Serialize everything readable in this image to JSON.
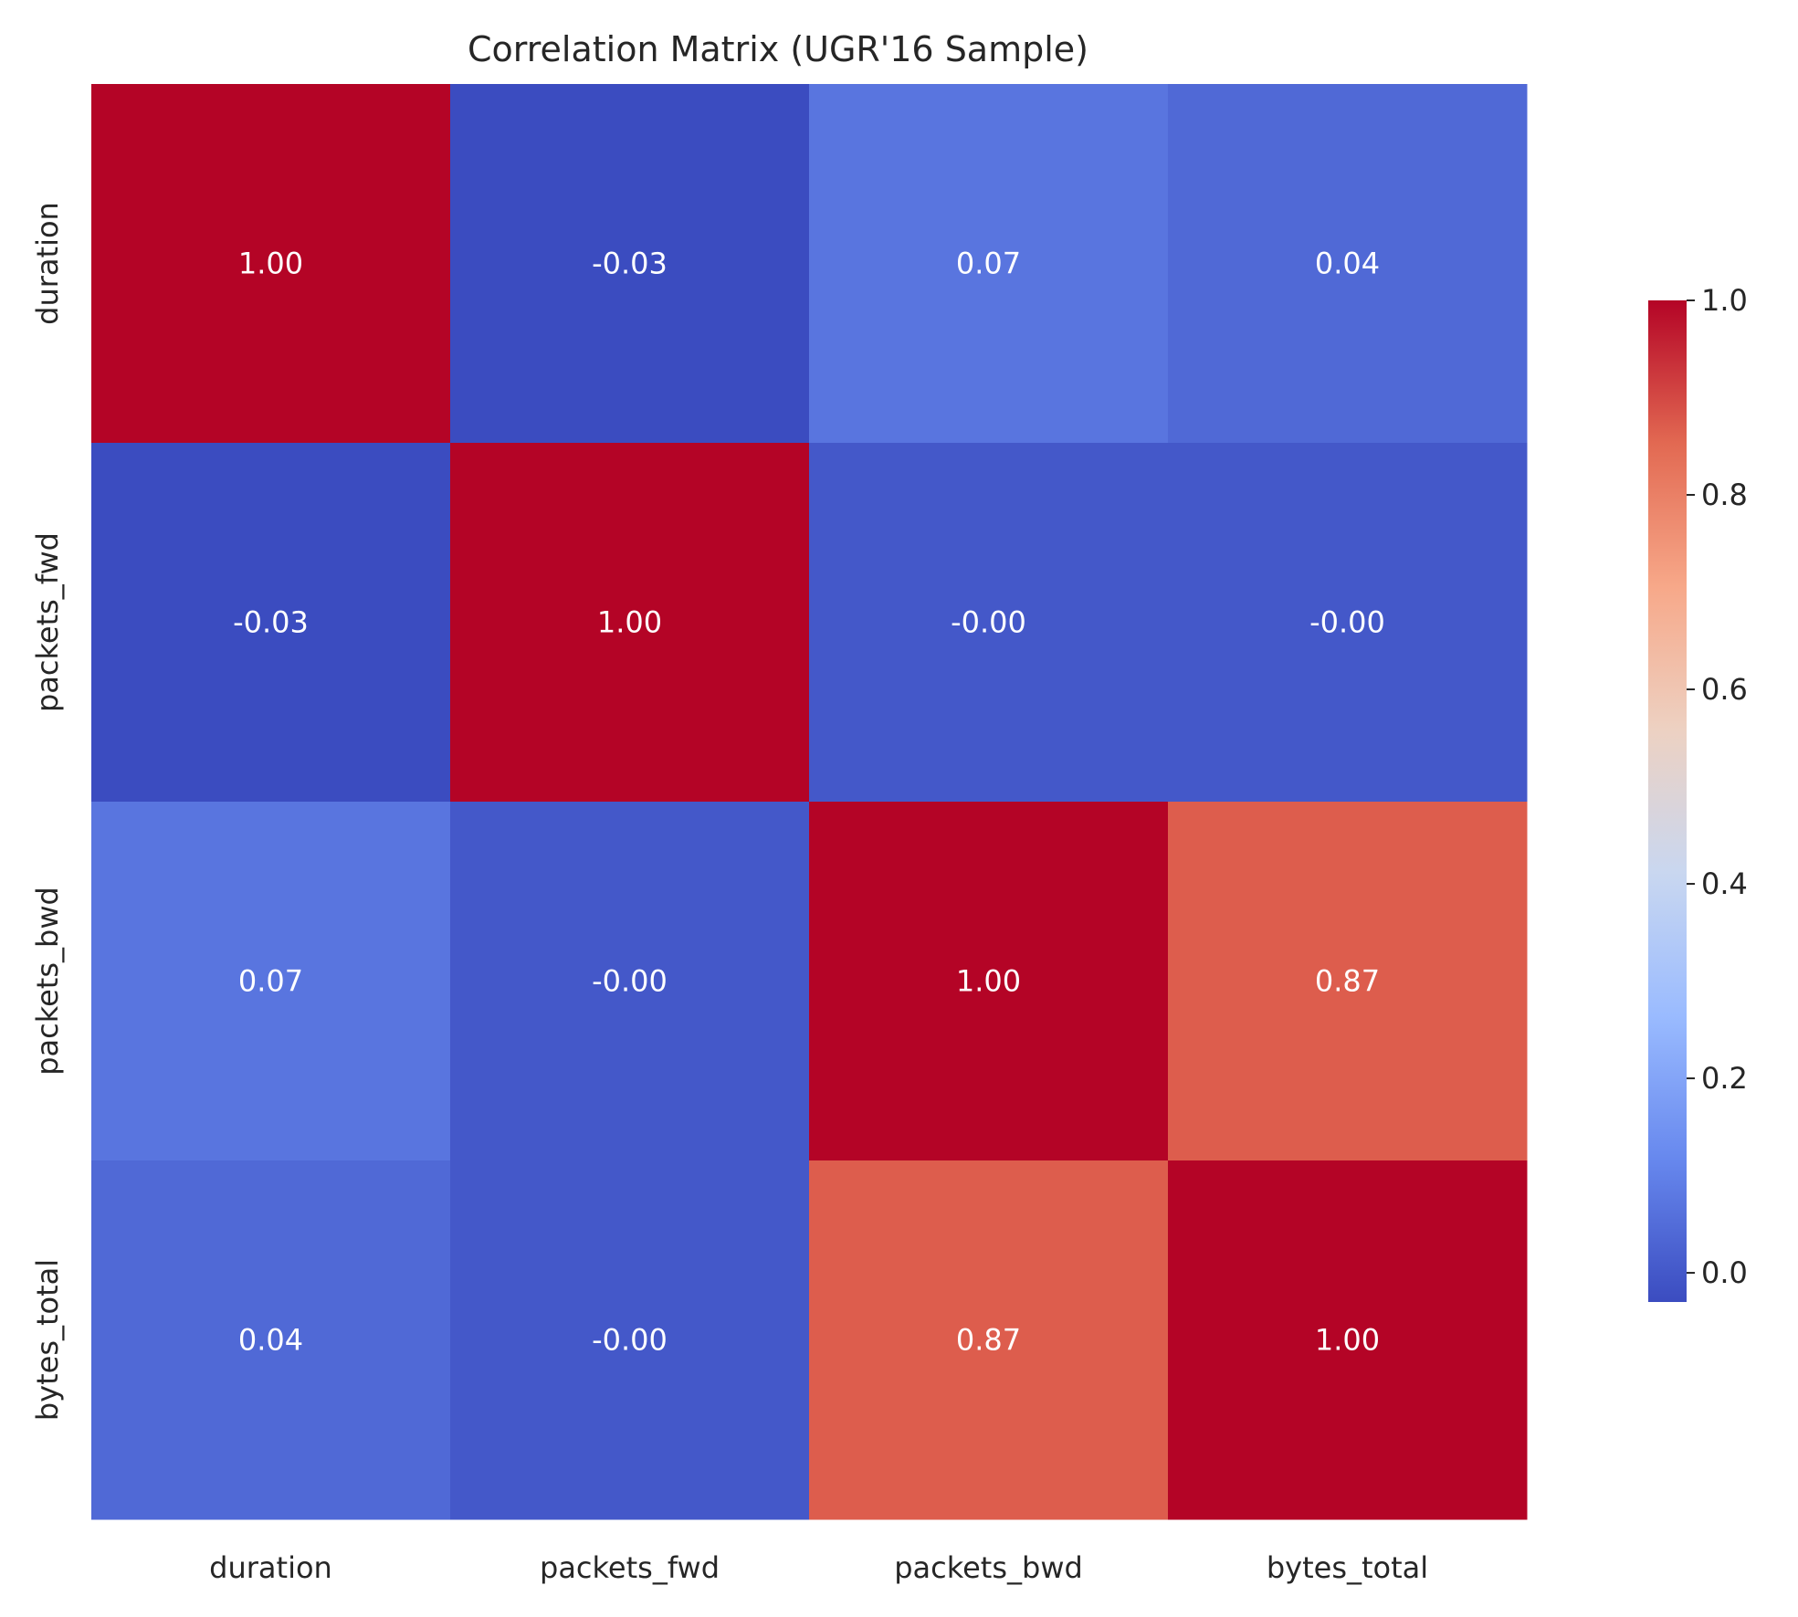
{
  "chart_data": {
    "type": "heatmap",
    "title": "Correlation Matrix (UGR'16 Sample)",
    "xlabel": "",
    "ylabel": "",
    "x_labels": [
      "duration",
      "packets_fwd",
      "packets_bwd",
      "bytes_total"
    ],
    "y_labels": [
      "duration",
      "packets_fwd",
      "packets_bwd",
      "bytes_total"
    ],
    "values": [
      [
        1.0,
        -0.03,
        0.07,
        0.04
      ],
      [
        -0.03,
        1.0,
        -0.0,
        -0.0
      ],
      [
        0.07,
        -0.0,
        1.0,
        0.87
      ],
      [
        0.04,
        -0.0,
        0.87,
        1.0
      ]
    ],
    "cell_labels": [
      [
        "1.00",
        "-0.03",
        "0.07",
        "0.04"
      ],
      [
        "-0.03",
        "1.00",
        "-0.00",
        "-0.00"
      ],
      [
        "0.07",
        "-0.00",
        "1.00",
        "0.87"
      ],
      [
        "0.04",
        "-0.00",
        "0.87",
        "1.00"
      ]
    ],
    "colormap": "coolwarm",
    "colorbar": {
      "range": [
        -0.03,
        1.0
      ],
      "ticks": [
        0.0,
        0.2,
        0.4,
        0.6,
        0.8,
        1.0
      ],
      "tick_labels": [
        "0.0",
        "0.2",
        "0.4",
        "0.6",
        "0.8",
        "1.0"
      ]
    },
    "grid": false,
    "legend": "colorbar-right"
  },
  "colors": {
    "text": "#262626",
    "cell_text": "#ffffff",
    "coolwarm_stops": [
      "#3b4cc0",
      "#6788ee",
      "#9abbff",
      "#c9d7f0",
      "#edd1c2",
      "#f7a889",
      "#e26952",
      "#b40426"
    ]
  }
}
